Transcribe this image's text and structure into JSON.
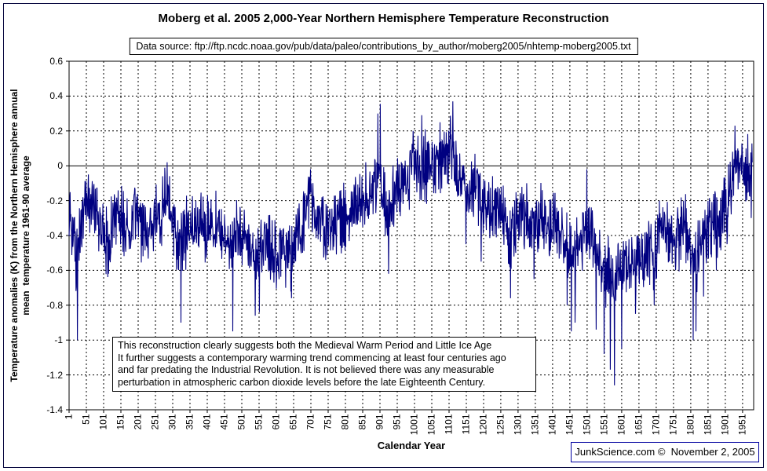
{
  "header": {
    "data_source": "Data source: ftp://ftp.ncdc.noaa.gov/pub/data/paleo/contributions_by_author/moberg2005/nhtemp-moberg2005.txt"
  },
  "annotation": {
    "lines": [
      "This reconstruction clearly suggests both the Medieval Warm Period and Little Ice Age",
      "It further suggests a contemporary warming trend commencing at least four centuries ago",
      "and far predating the Industrial Revolution. It is not believed there was any measurable",
      "perturbation in atmospheric carbon dioxide levels before the late Eighteenth Century."
    ]
  },
  "footer": {
    "credit": "JunkScience.com ©  November 2, 2005",
    "border_color": "#0000a0"
  },
  "chart_data": {
    "type": "line",
    "title": "Moberg et al. 2005 2,000-Year Northern Hemisphere Temperature Reconstruction",
    "xlabel": "Calendar Year",
    "ylabel_line1": "Temperature anomalies (K) from the Northern Hemisphere annual",
    "ylabel_line2": "mean  temperature 1961-90 average",
    "xlim": [
      1,
      1983
    ],
    "ylim": [
      -1.4,
      0.6
    ],
    "x_ticks": [
      1,
      51,
      101,
      151,
      201,
      251,
      301,
      351,
      401,
      451,
      501,
      551,
      601,
      651,
      701,
      751,
      801,
      851,
      901,
      951,
      1001,
      1051,
      1101,
      1151,
      1201,
      1251,
      1301,
      1351,
      1401,
      1451,
      1501,
      1551,
      1601,
      1651,
      1701,
      1751,
      1801,
      1851,
      1901,
      1951
    ],
    "y_tick_labels": [
      "0.6",
      "0.4",
      "0.2",
      "0",
      "-0.2",
      "-0.4",
      "-0.6",
      "-0.8",
      "-1",
      "-1.2",
      "-1.4"
    ],
    "grid": {
      "style": "dashed",
      "vertical_step_years": 50,
      "horizontal_step_K": 0.2,
      "zero_line": "solid"
    },
    "legend": "none",
    "line_color": "#000080",
    "series": {
      "name": "NH annual mean temperature anomaly (K) vs 1961-90 average",
      "x_start": 1,
      "x_end": 1979,
      "anchor_start_year": 1,
      "anchor_step": 10,
      "anchors": [
        -0.28,
        -0.38,
        -0.55,
        -0.45,
        -0.28,
        -0.18,
        -0.18,
        -0.22,
        -0.28,
        -0.32,
        -0.36,
        -0.42,
        -0.38,
        -0.32,
        -0.28,
        -0.3,
        -0.34,
        -0.32,
        -0.28,
        -0.26,
        -0.3,
        -0.34,
        -0.38,
        -0.38,
        -0.34,
        -0.3,
        -0.28,
        -0.22,
        -0.16,
        -0.22,
        -0.3,
        -0.38,
        -0.46,
        -0.42,
        -0.38,
        -0.34,
        -0.34,
        -0.3,
        -0.32,
        -0.34,
        -0.33,
        -0.3,
        -0.34,
        -0.38,
        -0.4,
        -0.42,
        -0.4,
        -0.46,
        -0.42,
        -0.4,
        -0.4,
        -0.42,
        -0.46,
        -0.52,
        -0.54,
        -0.48,
        -0.44,
        -0.42,
        -0.46,
        -0.5,
        -0.5,
        -0.48,
        -0.46,
        -0.5,
        -0.52,
        -0.48,
        -0.4,
        -0.34,
        -0.28,
        -0.24,
        -0.22,
        -0.26,
        -0.3,
        -0.32,
        -0.34,
        -0.36,
        -0.38,
        -0.34,
        -0.3,
        -0.3,
        -0.3,
        -0.28,
        -0.26,
        -0.24,
        -0.22,
        -0.2,
        -0.18,
        -0.2,
        -0.16,
        -0.1,
        -0.08,
        -0.18,
        -0.3,
        -0.26,
        -0.18,
        -0.14,
        -0.1,
        -0.08,
        -0.04,
        -0.02,
        0.0,
        0.0,
        0.02,
        -0.02,
        0.0,
        0.02,
        -0.02,
        0.0,
        0.02,
        0.05,
        0.08,
        0.05,
        -0.04,
        -0.08,
        -0.1,
        -0.13,
        -0.13,
        -0.1,
        -0.14,
        -0.18,
        -0.18,
        -0.2,
        -0.24,
        -0.24,
        -0.26,
        -0.28,
        -0.3,
        -0.38,
        -0.42,
        -0.34,
        -0.3,
        -0.28,
        -0.3,
        -0.33,
        -0.34,
        -0.3,
        -0.3,
        -0.3,
        -0.33,
        -0.34,
        -0.34,
        -0.35,
        -0.38,
        -0.4,
        -0.48,
        -0.52,
        -0.54,
        -0.48,
        -0.44,
        -0.38,
        -0.36,
        -0.4,
        -0.46,
        -0.5,
        -0.54,
        -0.58,
        -0.62,
        -0.66,
        -0.62,
        -0.58,
        -0.62,
        -0.58,
        -0.54,
        -0.5,
        -0.54,
        -0.54,
        -0.5,
        -0.48,
        -0.52,
        -0.52,
        -0.48,
        -0.4,
        -0.36,
        -0.4,
        -0.4,
        -0.44,
        -0.4,
        -0.38,
        -0.34,
        -0.4,
        -0.5,
        -0.56,
        -0.48,
        -0.44,
        -0.4,
        -0.38,
        -0.34,
        -0.3,
        -0.33,
        -0.3,
        -0.24,
        -0.18,
        -0.1,
        -0.02,
        0.0,
        -0.04,
        -0.04,
        0.0,
        0.04
      ],
      "noise_amplitude": 0.16,
      "extremes": [
        [
          25,
          -1.0
        ],
        [
          57,
          -0.05
        ],
        [
          115,
          -0.62
        ],
        [
          285,
          0.02
        ],
        [
          325,
          -0.9
        ],
        [
          475,
          -0.95
        ],
        [
          540,
          -0.86
        ],
        [
          552,
          -0.84
        ],
        [
          645,
          -0.76
        ],
        [
          700,
          -0.02
        ],
        [
          860,
          0.02
        ],
        [
          895,
          0.3
        ],
        [
          902,
          0.355
        ],
        [
          926,
          -0.62
        ],
        [
          997,
          0.2
        ],
        [
          1022,
          0.29
        ],
        [
          1075,
          0.25
        ],
        [
          1112,
          0.37
        ],
        [
          1150,
          -0.45
        ],
        [
          1194,
          -0.55
        ],
        [
          1279,
          -0.76
        ],
        [
          1347,
          -0.65
        ],
        [
          1443,
          -0.8
        ],
        [
          1455,
          -0.95
        ],
        [
          1466,
          -0.9
        ],
        [
          1500,
          -0.02
        ],
        [
          1527,
          -0.94
        ],
        [
          1550,
          -1.08
        ],
        [
          1568,
          -1.17
        ],
        [
          1580,
          -1.26
        ],
        [
          1601,
          -1.05
        ],
        [
          1641,
          -0.85
        ],
        [
          1695,
          -0.8
        ],
        [
          1710,
          -0.2
        ],
        [
          1780,
          -0.2
        ],
        [
          1808,
          -1.0
        ],
        [
          1816,
          -0.95
        ],
        [
          1838,
          -0.75
        ],
        [
          1875,
          -0.6
        ],
        [
          1906,
          -0.45
        ],
        [
          1929,
          0.23
        ],
        [
          1950,
          0.1
        ],
        [
          1976,
          -0.3
        ],
        [
          1979,
          0.02
        ]
      ]
    }
  }
}
